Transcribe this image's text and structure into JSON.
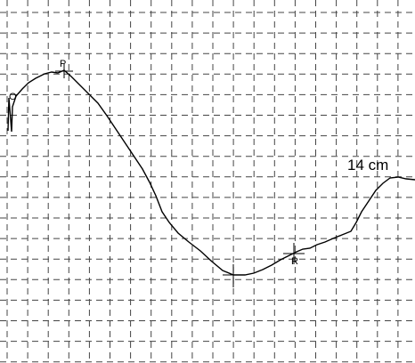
{
  "labels": {
    "start": "O",
    "peak": "P",
    "right": "R",
    "measurement": "14 cm"
  }
}
